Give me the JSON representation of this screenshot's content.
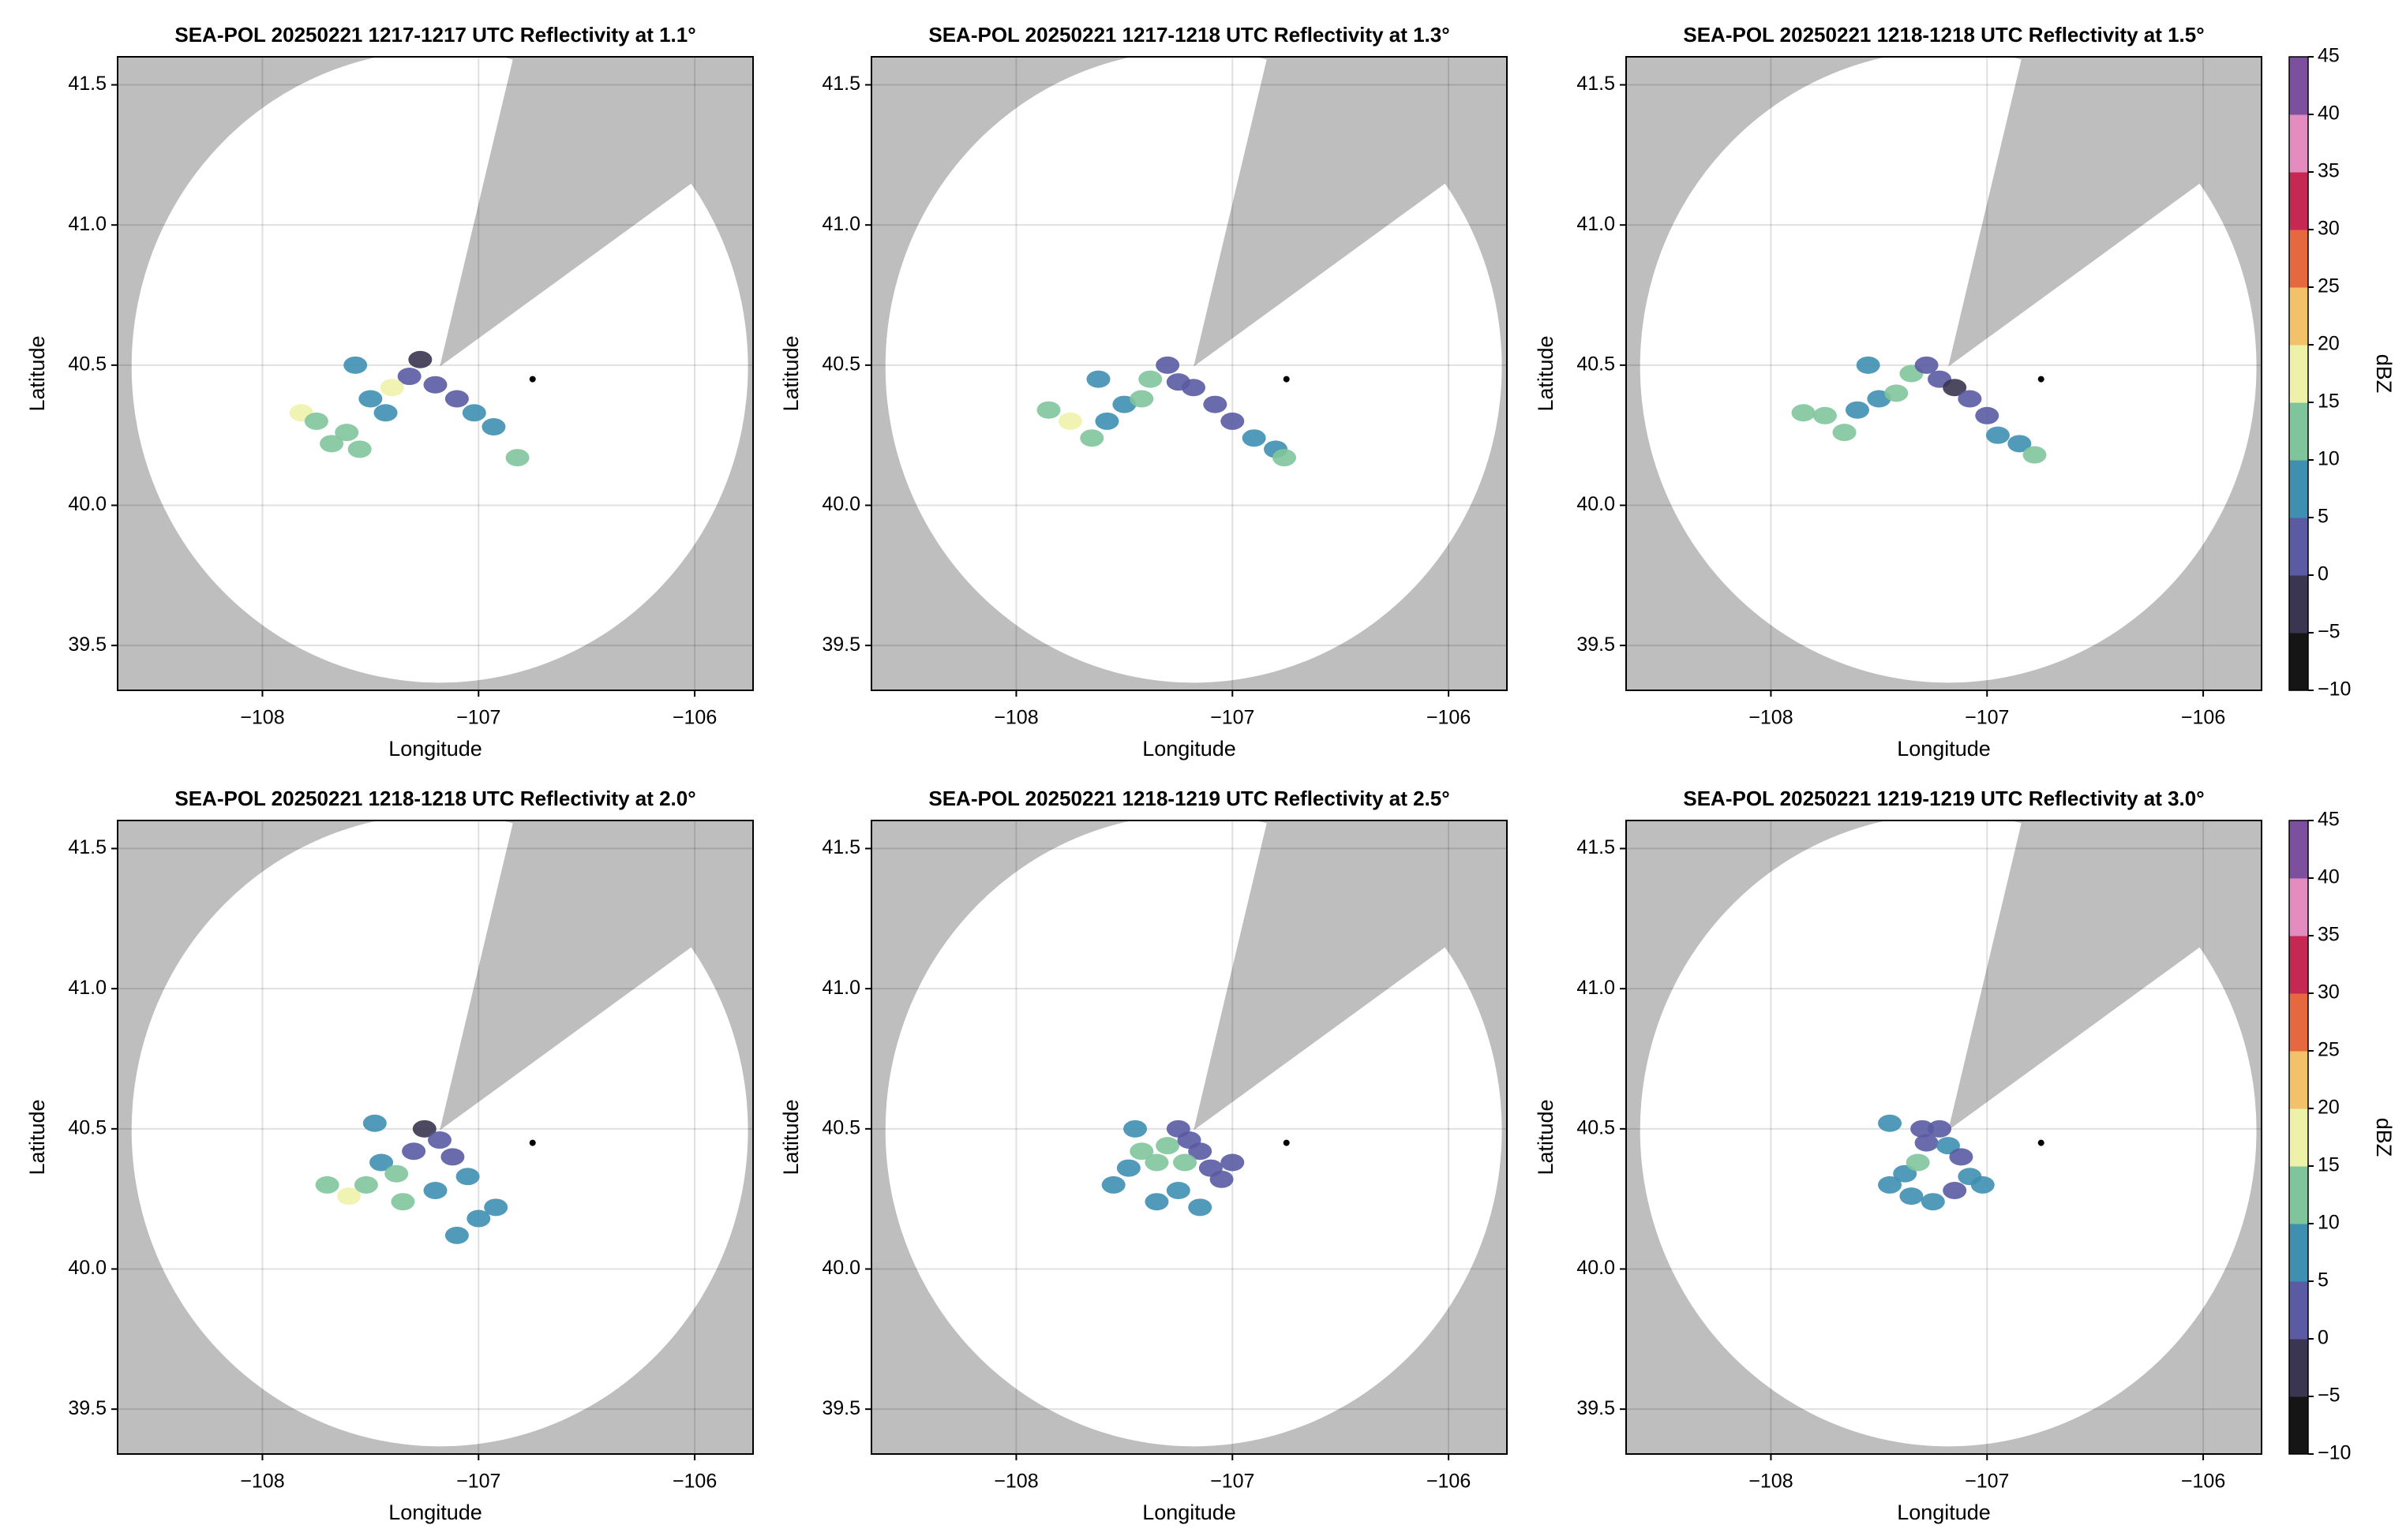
{
  "chart_data": [
    {
      "type": "radar",
      "title": "SEA-POL 20250221 1217-1217 UTC Reflectivity at 1.1°",
      "x_label": "Longitude",
      "y_label": "Latitude",
      "xlim": [
        -108.67,
        -105.73
      ],
      "ylim": [
        39.34,
        41.6
      ],
      "xticks": [
        {
          "value": -108,
          "label": "−108"
        },
        {
          "value": -107,
          "label": "−107"
        },
        {
          "value": -106,
          "label": "−106"
        }
      ],
      "yticks": [
        39.5,
        {
          "value": 40,
          "label": "40.0"
        },
        40.5,
        {
          "value": 41,
          "label": "41.0"
        },
        41.5
      ],
      "grid": true,
      "echo": {
        "lon": [
          -107.82,
          -107.75,
          -107.68,
          -107.61,
          -107.55,
          -107.5,
          -107.43,
          -107.57,
          -107.32,
          -107.27,
          -107.2,
          -107.1,
          -107.02,
          -106.93,
          -106.82,
          -107.4
        ],
        "lat": [
          40.33,
          40.3,
          40.22,
          40.26,
          40.2,
          40.38,
          40.33,
          40.5,
          40.46,
          40.52,
          40.43,
          40.38,
          40.33,
          40.28,
          40.17,
          40.42
        ],
        "dbz": [
          15,
          13,
          12,
          14,
          11,
          6,
          8,
          5,
          1,
          -1,
          3,
          2,
          5,
          7,
          11,
          17
        ]
      },
      "site": {
        "lon": -106.75,
        "lat": 40.45
      }
    },
    {
      "type": "radar",
      "title": "SEA-POL 20250221 1217-1218 UTC Reflectivity at 1.3°",
      "x_label": "Longitude",
      "y_label": "Latitude",
      "xlim": [
        -108.67,
        -105.73
      ],
      "ylim": [
        39.34,
        41.6
      ],
      "xticks": [
        {
          "value": -108,
          "label": "−108"
        },
        {
          "value": -107,
          "label": "−107"
        },
        {
          "value": -106,
          "label": "−106"
        }
      ],
      "yticks": [
        39.5,
        {
          "value": 40,
          "label": "40.0"
        },
        40.5,
        {
          "value": 41,
          "label": "41.0"
        },
        41.5
      ],
      "grid": true,
      "echo": {
        "lon": [
          -107.85,
          -107.75,
          -107.65,
          -107.58,
          -107.5,
          -107.42,
          -107.38,
          -107.3,
          -107.25,
          -107.18,
          -107.08,
          -107.0,
          -106.9,
          -106.8,
          -106.76,
          -107.62
        ],
        "lat": [
          40.34,
          40.3,
          40.24,
          40.3,
          40.36,
          40.38,
          40.45,
          40.5,
          40.44,
          40.42,
          40.36,
          40.3,
          40.24,
          40.2,
          40.17,
          40.45
        ],
        "dbz": [
          13,
          15,
          12,
          9,
          7,
          10,
          14,
          3,
          2,
          0,
          1,
          4,
          6,
          9,
          12,
          6
        ]
      },
      "site": {
        "lon": -106.75,
        "lat": 40.45
      }
    },
    {
      "type": "radar",
      "title": "SEA-POL 20250221 1218-1218 UTC Reflectivity at 1.5°",
      "x_label": "Longitude",
      "y_label": "Latitude",
      "xlim": [
        -108.67,
        -105.73
      ],
      "ylim": [
        39.34,
        41.6
      ],
      "xticks": [
        {
          "value": -108,
          "label": "−108"
        },
        {
          "value": -107,
          "label": "−107"
        },
        {
          "value": -106,
          "label": "−106"
        }
      ],
      "yticks": [
        39.5,
        {
          "value": 40,
          "label": "40.0"
        },
        40.5,
        {
          "value": 41,
          "label": "41.0"
        },
        41.5
      ],
      "grid": true,
      "echo": {
        "lon": [
          -107.85,
          -107.75,
          -107.66,
          -107.6,
          -107.5,
          -107.42,
          -107.35,
          -107.28,
          -107.22,
          -107.15,
          -107.08,
          -107.0,
          -106.95,
          -106.85,
          -106.78,
          -107.55
        ],
        "lat": [
          40.33,
          40.32,
          40.26,
          40.34,
          40.38,
          40.4,
          40.47,
          40.5,
          40.45,
          40.42,
          40.38,
          40.32,
          40.25,
          40.22,
          40.18,
          40.5
        ],
        "dbz": [
          14,
          12,
          11,
          9,
          7,
          12,
          13,
          2,
          1,
          -1,
          1,
          3,
          5,
          7,
          10,
          5
        ]
      },
      "site": {
        "lon": -106.75,
        "lat": 40.45
      },
      "colorbar": {
        "label": "dBZ",
        "lim": [
          -10,
          45
        ],
        "ticks": [
          {
            "value": -10,
            "label": "−10"
          },
          {
            "value": -5,
            "label": "−5"
          },
          0,
          5,
          10,
          15,
          20,
          25,
          30,
          35,
          40,
          45
        ],
        "colors": [
          "#151515",
          "#3a3550",
          "#5a5ba3",
          "#3f8fb1",
          "#7fc59b",
          "#eef2a8",
          "#f2c169",
          "#e7673e",
          "#c52853",
          "#e48cc0",
          "#7d4f9f"
        ]
      }
    },
    {
      "type": "radar",
      "title": "SEA-POL 20250221 1218-1218 UTC Reflectivity at 2.0°",
      "x_label": "Longitude",
      "y_label": "Latitude",
      "xlim": [
        -108.67,
        -105.73
      ],
      "ylim": [
        39.34,
        41.6
      ],
      "xticks": [
        {
          "value": -108,
          "label": "−108"
        },
        {
          "value": -107,
          "label": "−107"
        },
        {
          "value": -106,
          "label": "−106"
        }
      ],
      "yticks": [
        39.5,
        {
          "value": 40,
          "label": "40.0"
        },
        40.5,
        {
          "value": 41,
          "label": "41.0"
        },
        41.5
      ],
      "grid": true,
      "echo": {
        "lon": [
          -107.7,
          -107.6,
          -107.52,
          -107.45,
          -107.38,
          -107.3,
          -107.25,
          -107.18,
          -107.12,
          -107.05,
          -107.0,
          -106.92,
          -107.48,
          -107.35,
          -107.2,
          -107.1
        ],
        "lat": [
          40.3,
          40.26,
          40.3,
          40.38,
          40.34,
          40.42,
          40.5,
          40.46,
          40.4,
          40.33,
          40.18,
          40.22,
          40.52,
          40.24,
          40.28,
          40.12
        ],
        "dbz": [
          10,
          15,
          13,
          9,
          11,
          4,
          -1,
          1,
          3,
          5,
          7,
          6,
          6,
          12,
          8,
          6
        ]
      },
      "site": {
        "lon": -106.75,
        "lat": 40.45
      }
    },
    {
      "type": "radar",
      "title": "SEA-POL 20250221 1218-1219 UTC Reflectivity at 2.5°",
      "x_label": "Longitude",
      "y_label": "Latitude",
      "xlim": [
        -108.67,
        -105.73
      ],
      "ylim": [
        39.34,
        41.6
      ],
      "xticks": [
        {
          "value": -108,
          "label": "−108"
        },
        {
          "value": -107,
          "label": "−107"
        },
        {
          "value": -106,
          "label": "−106"
        }
      ],
      "yticks": [
        39.5,
        {
          "value": 40,
          "label": "40.0"
        },
        40.5,
        {
          "value": 41,
          "label": "41.0"
        },
        41.5
      ],
      "grid": true,
      "echo": {
        "lon": [
          -107.55,
          -107.48,
          -107.42,
          -107.35,
          -107.3,
          -107.25,
          -107.2,
          -107.15,
          -107.1,
          -107.05,
          -107.35,
          -107.25,
          -107.15,
          -107.0,
          -107.45,
          -107.22
        ],
        "lat": [
          40.3,
          40.36,
          40.42,
          40.38,
          40.44,
          40.5,
          40.46,
          40.42,
          40.36,
          40.32,
          40.24,
          40.28,
          40.22,
          40.38,
          40.5,
          40.38
        ],
        "dbz": [
          8,
          6,
          10,
          12,
          14,
          2,
          1,
          3,
          2,
          4,
          7,
          9,
          6,
          3,
          5,
          11
        ]
      },
      "site": {
        "lon": -106.75,
        "lat": 40.45
      }
    },
    {
      "type": "radar",
      "title": "SEA-POL 20250221 1219-1219 UTC Reflectivity at 3.0°",
      "x_label": "Longitude",
      "y_label": "Latitude",
      "xlim": [
        -108.67,
        -105.73
      ],
      "ylim": [
        39.34,
        41.6
      ],
      "xticks": [
        {
          "value": -108,
          "label": "−108"
        },
        {
          "value": -107,
          "label": "−107"
        },
        {
          "value": -106,
          "label": "−106"
        }
      ],
      "yticks": [
        39.5,
        {
          "value": 40,
          "label": "40.0"
        },
        40.5,
        {
          "value": 41,
          "label": "41.0"
        },
        41.5
      ],
      "grid": true,
      "echo": {
        "lon": [
          -107.45,
          -107.38,
          -107.32,
          -107.28,
          -107.22,
          -107.18,
          -107.12,
          -107.08,
          -107.02,
          -107.35,
          -107.25,
          -107.15,
          -107.3,
          -107.45
        ],
        "lat": [
          40.3,
          40.34,
          40.38,
          40.45,
          40.5,
          40.44,
          40.4,
          40.33,
          40.3,
          40.26,
          40.24,
          40.28,
          40.5,
          40.52
        ],
        "dbz": [
          6,
          9,
          11,
          2,
          0,
          8,
          3,
          5,
          6,
          7,
          9,
          4,
          1,
          5
        ]
      },
      "site": {
        "lon": -106.75,
        "lat": 40.45
      },
      "colorbar": {
        "label": "dBZ",
        "lim": [
          -10,
          45
        ],
        "ticks": [
          {
            "value": -10,
            "label": "−10"
          },
          {
            "value": -5,
            "label": "−5"
          },
          0,
          5,
          10,
          15,
          20,
          25,
          30,
          35,
          40,
          45
        ],
        "colors": [
          "#151515",
          "#3a3550",
          "#5a5ba3",
          "#3f8fb1",
          "#7fc59b",
          "#eef2a8",
          "#f2c169",
          "#e7673e",
          "#c52853",
          "#e48cc0",
          "#7d4f9f"
        ]
      }
    }
  ]
}
